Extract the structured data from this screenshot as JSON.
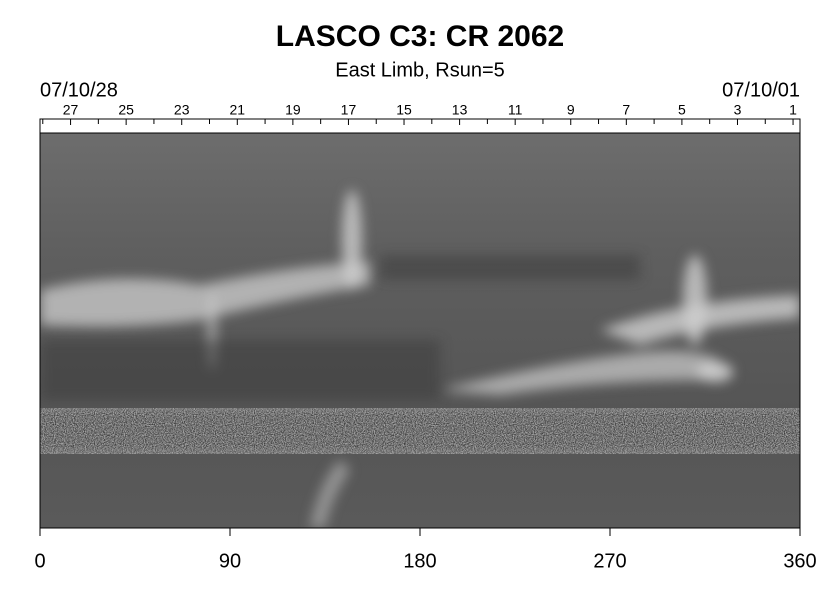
{
  "chart_data": {
    "type": "image-map",
    "title": "LASCO C3: CR 2062",
    "subtitle": "East Limb, Rsun=5",
    "start_date_label": "07/10/28",
    "end_date_label": "07/10/01",
    "xlim": [
      0,
      360
    ],
    "xticks": [
      0,
      90,
      180,
      270,
      360
    ],
    "x2lim": [
      28.1,
      0.75
    ],
    "x2ticks": [
      27,
      25,
      23,
      21,
      19,
      17,
      15,
      13,
      11,
      9,
      7,
      5,
      3,
      1
    ],
    "x2minor": [
      28,
      26,
      24,
      22,
      20,
      18,
      16,
      14,
      12,
      10,
      8,
      6,
      4,
      2
    ]
  }
}
